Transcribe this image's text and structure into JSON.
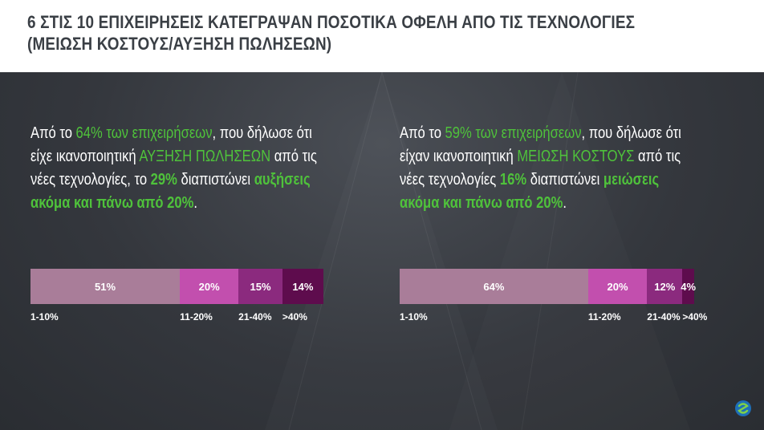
{
  "title": "6 ΣΤΙΣ 10 ΕΠΙΧΕΙΡΗΣΕΙΣ ΚΑΤΕΓΡΑΨΑΝ ΠΟΣΟΤΙΚΑ ΟΦΕΛΗ ΑΠΟ ΤΙΣ ΤΕΧΝΟΛΟΓΙΕΣ\n(ΜΕΙΩΣΗ ΚΟΣΤΟΥΣ/ΑΥΞΗΣΗ ΠΩΛΗΣΕΩΝ)",
  "left_text": {
    "p1": "Από το ",
    "p2": "64% των επιχειρήσεων",
    "p3": ", που δήλωσε ότι είχε ικανοποιητική ",
    "p4": "ΑΥΞΗΣΗ ΠΩΛΗΣΕΩΝ",
    "p5": " από τις νέες τεχνολογίες, το ",
    "p6": "29%",
    "p7": " διαπιστώνει ",
    "p8": "αυξήσεις ακόμα και πάνω από 20%",
    "p9": "."
  },
  "right_text": {
    "p1": "Από το ",
    "p2": "59% των επιχειρήσεων",
    "p3": ", που δήλωσε ότι είχαν ικανοποιητική ",
    "p4": "ΜΕΙΩΣΗ ΚΟΣΤΟΥΣ",
    "p5": " από τις νέες τεχνολογίες ",
    "p6": "16%",
    "p7": " διαπιστώνει ",
    "p8": "μειώσεις ακόμα και πάνω από 20%",
    "p9": "."
  },
  "colors": {
    "seg1": "#a97d99",
    "seg2": "#c24fae",
    "seg3": "#8b2a7e",
    "seg4": "#5e0c4d",
    "highlight": "#4fc23b"
  },
  "chart_data": [
    {
      "type": "bar",
      "orientation": "horizontal-stacked",
      "categories": [
        "1-10%",
        "11-20%",
        "21-40%",
        ">40%"
      ],
      "values": [
        51,
        20,
        15,
        14
      ],
      "value_labels": [
        "51%",
        "20%",
        "15%",
        "14%"
      ]
    },
    {
      "type": "bar",
      "orientation": "horizontal-stacked",
      "categories": [
        "1-10%",
        "11-20%",
        "21-40%",
        ">40%"
      ],
      "values": [
        64,
        20,
        12,
        4
      ],
      "value_labels": [
        "64%",
        "20%",
        "12%",
        "4%"
      ]
    }
  ]
}
